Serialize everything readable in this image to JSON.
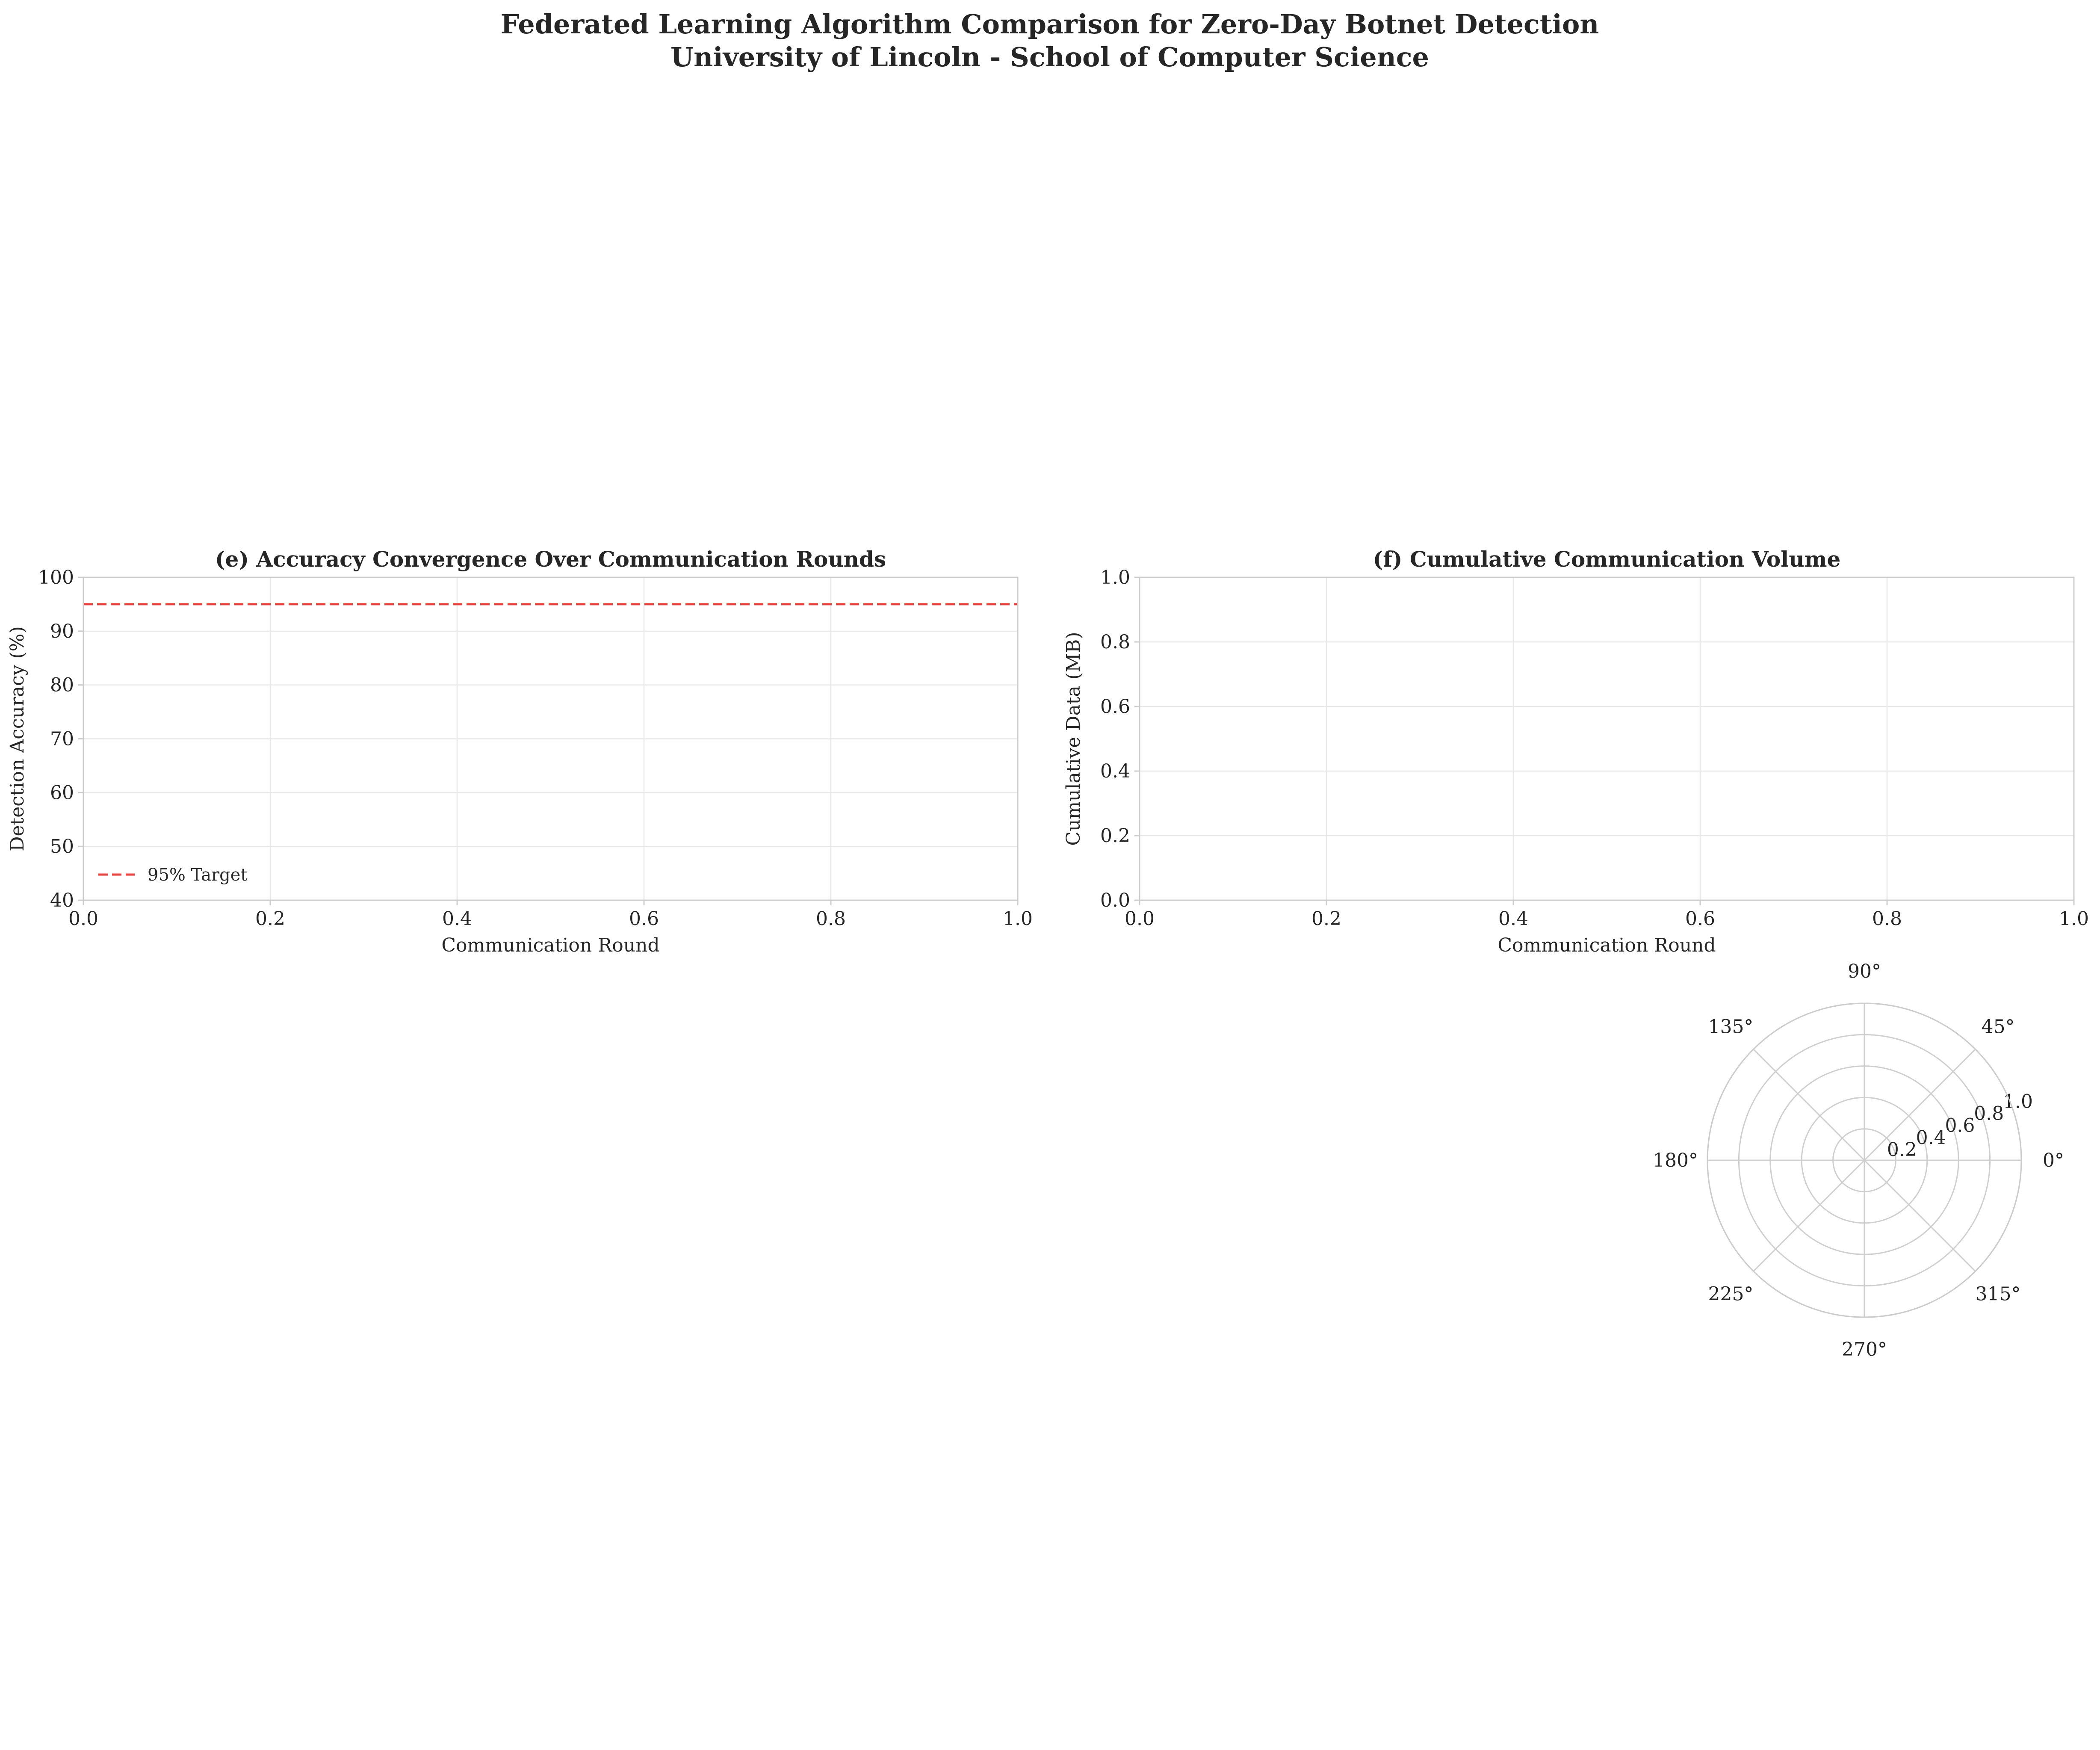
{
  "figure": {
    "title_line1": "Federated Learning Algorithm Comparison for Zero-Day Botnet Detection",
    "title_line2": "University of Lincoln - School of Computer Science"
  },
  "chart_data": [
    {
      "id": "e",
      "type": "line",
      "title": "(e) Accuracy Convergence Over Communication Rounds",
      "xlabel": "Communication Round",
      "ylabel": "Detection Accuracy (%)",
      "xlim": [
        0,
        1
      ],
      "ylim": [
        40,
        100
      ],
      "xticks": [
        0.0,
        0.2,
        0.4,
        0.6,
        0.8,
        1.0
      ],
      "xtick_labels": [
        "0.0",
        "0.2",
        "0.4",
        "0.6",
        "0.8",
        "1.0"
      ],
      "yticks": [
        40,
        50,
        60,
        70,
        80,
        90,
        100
      ],
      "ytick_labels": [
        "40",
        "50",
        "60",
        "70",
        "80",
        "90",
        "100"
      ],
      "grid": true,
      "series": [],
      "reference_lines": [
        {
          "name": "95% Target",
          "y": 95,
          "style": "dashed",
          "color": "#e8413f"
        }
      ],
      "legend": {
        "placement": "lower-left",
        "entries": [
          "95% Target"
        ]
      }
    },
    {
      "id": "f",
      "type": "line",
      "title": "(f) Cumulative Communication Volume",
      "xlabel": "Communication Round",
      "ylabel": "Cumulative Data (MB)",
      "xlim": [
        0,
        1
      ],
      "ylim": [
        0,
        1
      ],
      "xticks": [
        0.0,
        0.2,
        0.4,
        0.6,
        0.8,
        1.0
      ],
      "xtick_labels": [
        "0.0",
        "0.2",
        "0.4",
        "0.6",
        "0.8",
        "1.0"
      ],
      "yticks": [
        0.0,
        0.2,
        0.4,
        0.6,
        0.8,
        1.0
      ],
      "ytick_labels": [
        "0.0",
        "0.2",
        "0.4",
        "0.6",
        "0.8",
        "1.0"
      ],
      "grid": true,
      "series": []
    },
    {
      "id": "polar",
      "type": "polar",
      "rlim": [
        0,
        1
      ],
      "rticks": [
        0.2,
        0.4,
        0.6,
        0.8,
        1.0
      ],
      "rtick_labels": [
        "0.2",
        "0.4",
        "0.6",
        "0.8",
        "1.0"
      ],
      "angle_ticks": [
        0,
        45,
        90,
        135,
        180,
        225,
        270,
        315
      ],
      "angle_tick_labels": [
        "0°",
        "45°",
        "90°",
        "135°",
        "180°",
        "225°",
        "270°",
        "315°"
      ],
      "series": []
    }
  ]
}
